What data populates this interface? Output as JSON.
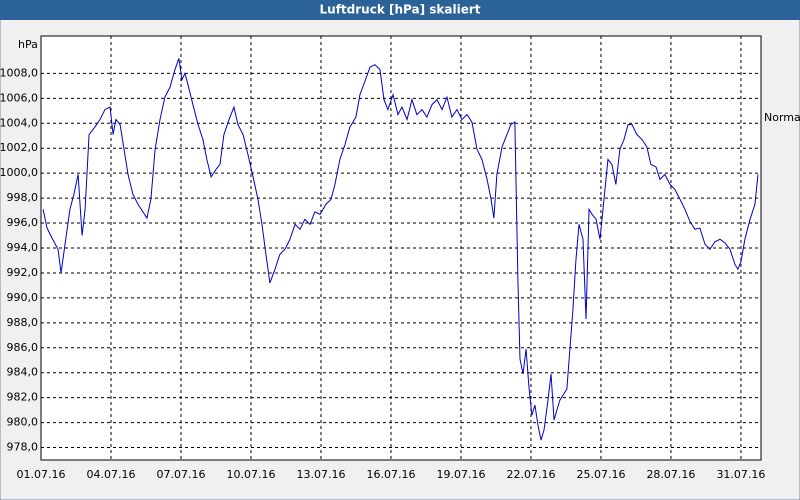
{
  "chart_data": {
    "type": "line",
    "title": "Luftdruck [hPa] skaliert",
    "y_label": "hPa",
    "annotation": "Normal",
    "color": "#0000c8",
    "grid": true,
    "xlim": [
      0,
      30.86
    ],
    "ylim": [
      977,
      1011
    ],
    "xticks": [
      {
        "value": 0,
        "label": "01.07.16"
      },
      {
        "value": 3,
        "label": "04.07.16"
      },
      {
        "value": 6,
        "label": "07.07.16"
      },
      {
        "value": 9,
        "label": "10.07.16"
      },
      {
        "value": 12,
        "label": "13.07.16"
      },
      {
        "value": 15,
        "label": "16.07.16"
      },
      {
        "value": 18,
        "label": "19.07.16"
      },
      {
        "value": 21,
        "label": "22.07.16"
      },
      {
        "value": 24,
        "label": "25.07.16"
      },
      {
        "value": 27,
        "label": "28.07.16"
      },
      {
        "value": 30,
        "label": "31.07.16"
      }
    ],
    "yticks": [
      {
        "value": 978,
        "label": "978,0"
      },
      {
        "value": 980,
        "label": "980,0"
      },
      {
        "value": 982,
        "label": "982,0"
      },
      {
        "value": 984,
        "label": "984,0"
      },
      {
        "value": 986,
        "label": "986,0"
      },
      {
        "value": 988,
        "label": "988,0"
      },
      {
        "value": 990,
        "label": "990,0"
      },
      {
        "value": 992,
        "label": "992,0"
      },
      {
        "value": 994,
        "label": "994,0"
      },
      {
        "value": 996,
        "label": "996,0"
      },
      {
        "value": 998,
        "label": "998,0"
      },
      {
        "value": 1000,
        "label": "1000,0"
      },
      {
        "value": 1002,
        "label": "1002,0"
      },
      {
        "value": 1004,
        "label": "1004,0"
      },
      {
        "value": 1006,
        "label": "1006,0"
      },
      {
        "value": 1008,
        "label": "1008,0"
      }
    ],
    "x": [
      0.09,
      0.26,
      0.47,
      0.73,
      0.86,
      1.03,
      1.24,
      1.41,
      1.59,
      1.76,
      1.89,
      2.06,
      2.31,
      2.53,
      2.74,
      2.96,
      3.09,
      3.21,
      3.39,
      3.56,
      3.73,
      3.94,
      4.16,
      4.54,
      4.71,
      4.89,
      5.1,
      5.31,
      5.53,
      5.74,
      5.91,
      6.04,
      6.17,
      6.3,
      6.51,
      6.73,
      6.94,
      7.11,
      7.29,
      7.5,
      7.67,
      7.84,
      8.06,
      8.27,
      8.44,
      8.66,
      8.87,
      9.09,
      9.3,
      9.47,
      9.64,
      9.81,
      10.03,
      10.24,
      10.46,
      10.67,
      10.89,
      11.1,
      11.31,
      11.53,
      11.74,
      11.96,
      12.21,
      12.43,
      12.6,
      12.81,
      13.03,
      13.24,
      13.5,
      13.67,
      13.89,
      14.1,
      14.31,
      14.53,
      14.7,
      14.87,
      15.09,
      15.3,
      15.47,
      15.69,
      15.9,
      16.11,
      16.33,
      16.54,
      16.76,
      16.97,
      17.19,
      17.4,
      17.61,
      17.83,
      18.04,
      18.26,
      18.47,
      18.69,
      18.9,
      19.12,
      19.29,
      19.41,
      19.54,
      19.76,
      19.97,
      20.14,
      20.31,
      20.44,
      20.53,
      20.66,
      20.79,
      20.92,
      21.04,
      21.17,
      21.3,
      21.43,
      21.56,
      21.73,
      21.86,
      21.99,
      22.11,
      22.24,
      22.41,
      22.54,
      22.67,
      22.8,
      22.93,
      23.06,
      23.23,
      23.36,
      23.49,
      23.62,
      23.79,
      23.96,
      24.13,
      24.3,
      24.47,
      24.64,
      24.81,
      24.99,
      25.16,
      25.33,
      25.54,
      25.76,
      25.97,
      26.14,
      26.36,
      26.53,
      26.74,
      26.96,
      27.17,
      27.39,
      27.6,
      27.82,
      28.03,
      28.24,
      28.46,
      28.67,
      28.89,
      29.1,
      29.32,
      29.53,
      29.74,
      29.87,
      30.0,
      30.17,
      30.39,
      30.6,
      30.73
    ],
    "values": [
      997.1,
      995.6,
      994.8,
      993.9,
      992.0,
      994.3,
      997.1,
      998.3,
      999.9,
      995.0,
      997.1,
      1003.1,
      1003.7,
      1004.3,
      1005.1,
      1005.3,
      1003.1,
      1004.3,
      1003.9,
      1001.9,
      999.9,
      998.3,
      997.5,
      996.4,
      997.9,
      1001.9,
      1004.3,
      1006.1,
      1006.9,
      1008.3,
      1009.2,
      1007.5,
      1008.0,
      1007.1,
      1005.5,
      1003.9,
      1002.7,
      1001.1,
      999.7,
      1000.3,
      1000.7,
      1003.1,
      1004.3,
      1005.3,
      1003.9,
      1003.1,
      1001.5,
      999.7,
      997.9,
      995.9,
      993.5,
      991.2,
      992.3,
      993.5,
      993.9,
      994.7,
      995.9,
      995.5,
      996.3,
      995.9,
      996.9,
      996.7,
      997.5,
      997.9,
      999.1,
      1001.1,
      1002.3,
      1003.7,
      1004.5,
      1006.3,
      1007.4,
      1008.5,
      1008.7,
      1008.3,
      1005.9,
      1005.1,
      1006.3,
      1004.7,
      1005.3,
      1004.3,
      1005.9,
      1004.7,
      1005.1,
      1004.5,
      1005.5,
      1005.9,
      1005.1,
      1006.1,
      1004.5,
      1005.1,
      1004.3,
      1004.7,
      1004.1,
      1001.9,
      1001.1,
      999.5,
      997.9,
      996.4,
      999.9,
      1002.1,
      1003.1,
      1003.9,
      1004.1,
      991.5,
      985.1,
      983.9,
      985.9,
      982.7,
      980.6,
      981.4,
      979.8,
      978.6,
      979.4,
      981.8,
      983.9,
      980.2,
      981.0,
      981.8,
      982.3,
      982.7,
      985.9,
      989.1,
      993.1,
      995.9,
      994.7,
      988.3,
      997.1,
      996.7,
      996.3,
      994.7,
      997.9,
      1001.1,
      1000.7,
      999.1,
      1001.9,
      1002.7,
      1003.9,
      1003.9,
      1003.1,
      1002.7,
      1002.1,
      1000.7,
      1000.5,
      999.5,
      999.9,
      999.1,
      998.7,
      997.9,
      997.1,
      996.1,
      995.5,
      995.6,
      994.3,
      993.9,
      994.5,
      994.7,
      994.4,
      993.9,
      992.7,
      992.3,
      992.9,
      994.7,
      996.3,
      997.5,
      999.9
    ]
  }
}
